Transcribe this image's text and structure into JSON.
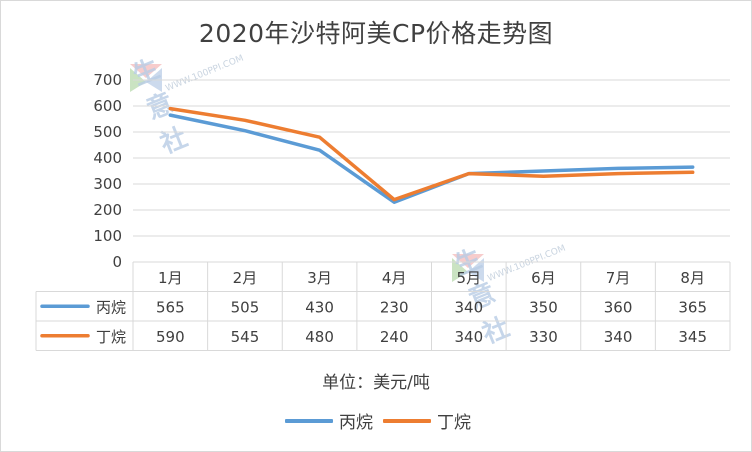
{
  "chart_data": {
    "type": "line",
    "title": "2020年沙特阿美CP价格走势图",
    "categories": [
      "1月",
      "2月",
      "3月",
      "4月",
      "5月",
      "6月",
      "7月",
      "8月"
    ],
    "series": [
      {
        "name": "丙烷",
        "values": [
          565,
          505,
          430,
          230,
          340,
          350,
          360,
          365
        ],
        "color": "#5b9bd5"
      },
      {
        "name": "丁烷",
        "values": [
          590,
          545,
          480,
          240,
          340,
          330,
          340,
          345
        ],
        "color": "#ed7d31"
      }
    ],
    "yticks": [
      0,
      100,
      200,
      300,
      400,
      500,
      600,
      700
    ],
    "ylim": [
      0,
      700
    ],
    "grid": true,
    "data_table": true,
    "unit_note": "单位：美元/吨",
    "legend_position": "bottom"
  },
  "watermark": {
    "brand": "生意社",
    "url": "WWW.100PPI.COM"
  }
}
